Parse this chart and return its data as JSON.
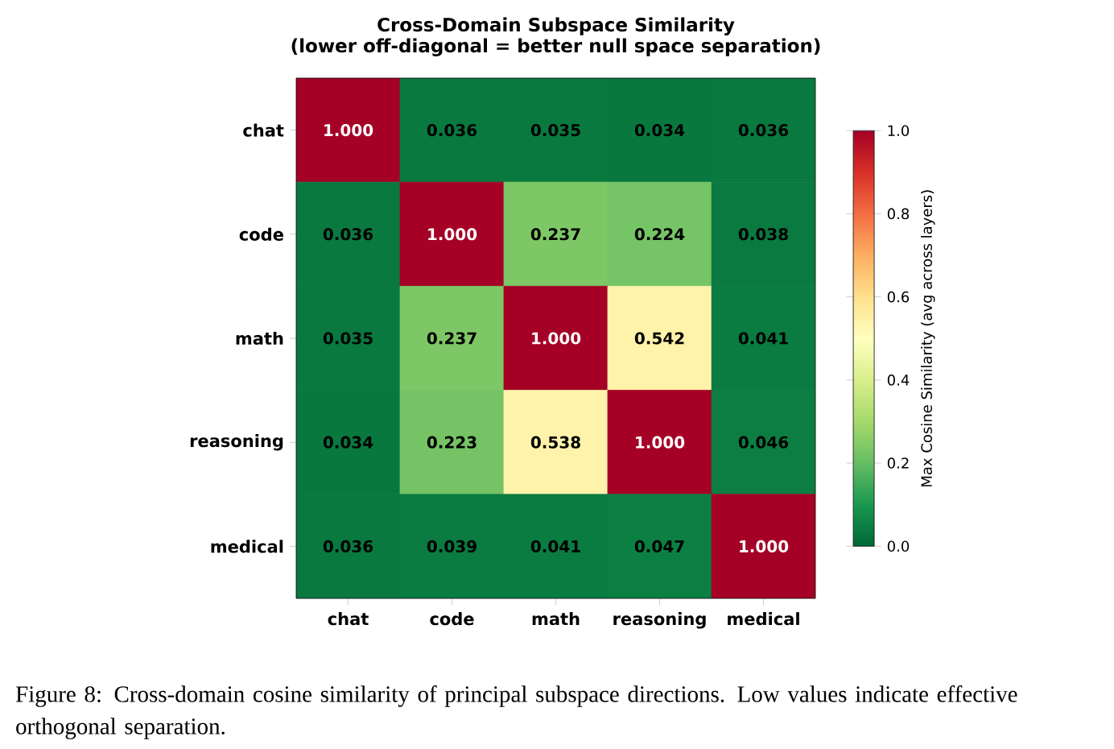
{
  "chart_data": {
    "type": "heatmap",
    "title": "Cross-Domain Subspace Similarity",
    "subtitle": "(lower off-diagonal = better null space separation)",
    "categories": [
      "chat",
      "code",
      "math",
      "reasoning",
      "medical"
    ],
    "y_categories": [
      "chat",
      "code",
      "math",
      "reasoning",
      "medical"
    ],
    "cells": [
      [
        1.0,
        0.036,
        0.035,
        0.034,
        0.036
      ],
      [
        0.036,
        1.0,
        0.237,
        0.224,
        0.038
      ],
      [
        0.035,
        0.237,
        1.0,
        0.542,
        0.041
      ],
      [
        0.034,
        0.223,
        0.538,
        1.0,
        0.046
      ],
      [
        0.036,
        0.039,
        0.041,
        0.047,
        1.0
      ]
    ],
    "cell_labels": [
      [
        "1.000",
        "0.036",
        "0.035",
        "0.034",
        "0.036"
      ],
      [
        "0.036",
        "1.000",
        "0.237",
        "0.224",
        "0.038"
      ],
      [
        "0.035",
        "0.237",
        "1.000",
        "0.542",
        "0.041"
      ],
      [
        "0.034",
        "0.223",
        "0.538",
        "1.000",
        "0.046"
      ],
      [
        "0.036",
        "0.039",
        "0.041",
        "0.047",
        "1.000"
      ]
    ],
    "clabel": "Max Cosine Similarity (avg across layers)",
    "clim": [
      0,
      1
    ],
    "cticks": [
      {
        "value": 0,
        "label": "0.0"
      },
      {
        "value": 0.2,
        "label": "0.2"
      },
      {
        "value": 0.4,
        "label": "0.4"
      },
      {
        "value": 0.6,
        "label": "0.6"
      },
      {
        "value": 0.8,
        "label": "0.8"
      },
      {
        "value": 1,
        "label": "1.0"
      }
    ],
    "annotations": [
      "Figure 8: Cross-domain cosine similarity of principal subspace directions. Low values indicate effective orthogonal separation."
    ]
  }
}
